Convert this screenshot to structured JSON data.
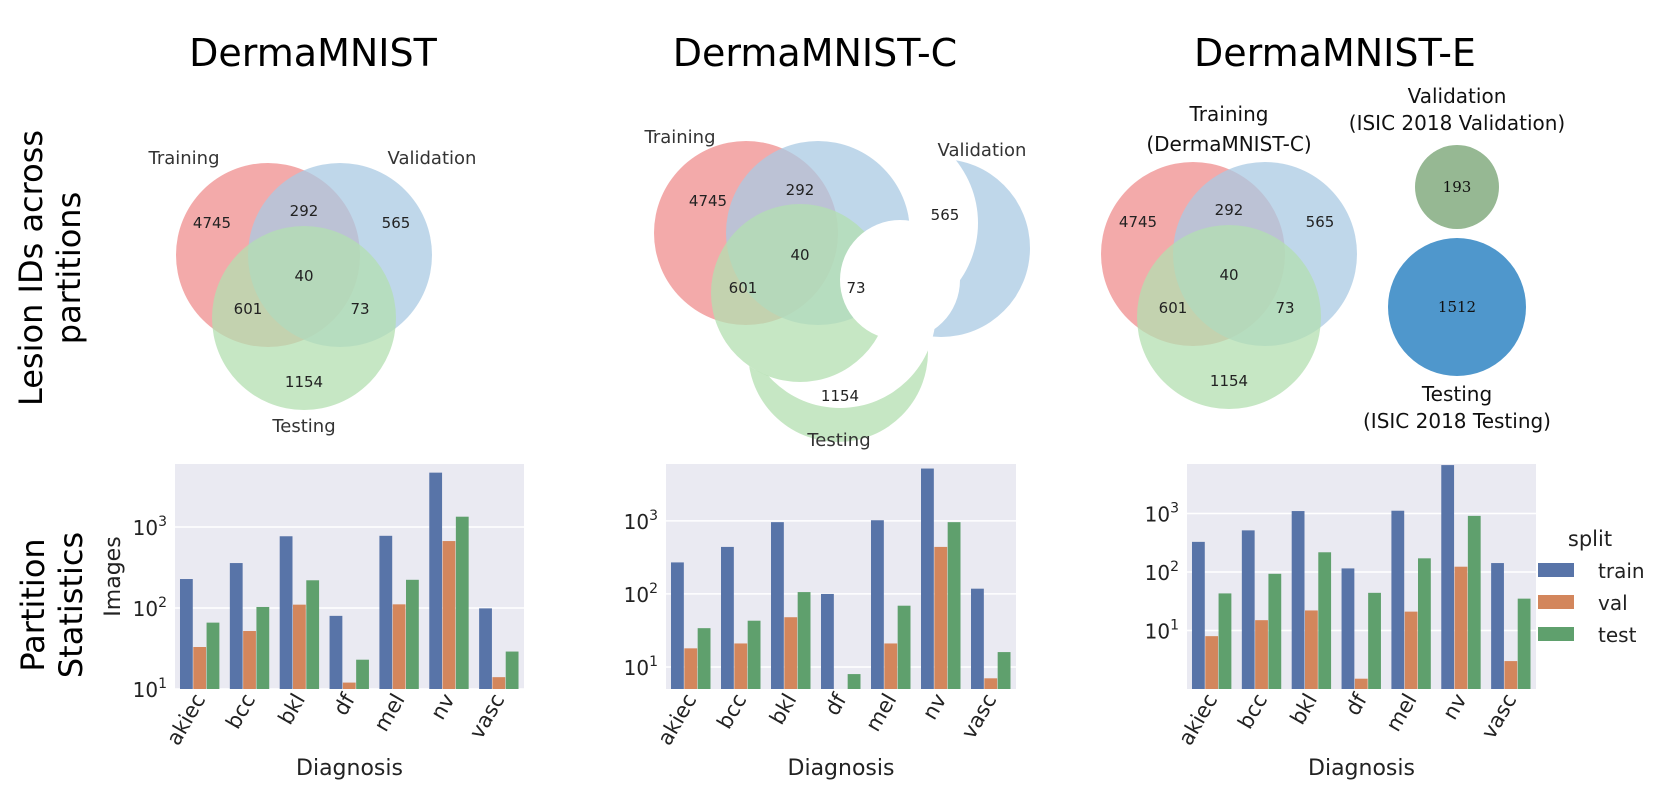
{
  "titles": [
    "DermaMNIST",
    "DermaMNIST-C",
    "DermaMNIST-E"
  ],
  "row_labels": {
    "top_line1": "Lesion IDs across",
    "top_line2": "partitions",
    "bottom_line1": "Partition",
    "bottom_line2": "Statistics"
  },
  "venn": {
    "labels": {
      "training": "Training",
      "validation": "Validation",
      "testing": "Testing"
    },
    "regions": {
      "train_only": "4745",
      "train_val": "292",
      "val_only": "565",
      "all_three": "40",
      "train_test": "601",
      "val_test": "73",
      "test_only": "1154"
    },
    "e_training_line1": "Training",
    "e_training_line2": "(DermaMNIST-C)",
    "e_validation_line1": "Validation",
    "e_validation_line2": "(ISIC 2018 Validation)",
    "e_testing_line1": "Testing",
    "e_testing_line2": "(ISIC 2018 Testing)",
    "e_val_count": "193",
    "e_test_count": "1512"
  },
  "colors": {
    "train": "#5874a8",
    "val": "#d3865c",
    "test": "#5fa06d",
    "plot_bg": "#eaeaf2",
    "venn_train": "#f2a1a1",
    "venn_val": "#a9c9e3",
    "venn_test": "#b3dfb0",
    "venn_tv": "#e6bad4",
    "venn_tt": "#f0d0b0",
    "venn_vt": "#bfeadd",
    "venn_all": "#d6ccc4",
    "e_val": "#96b893",
    "e_test": "#4f97cc"
  },
  "legend": {
    "title": "split",
    "items": [
      "train",
      "val",
      "test"
    ]
  },
  "chart_data": [
    {
      "type": "bar",
      "title": "DermaMNIST",
      "xlabel": "Diagnosis",
      "ylabel": "Images",
      "yscale": "log",
      "ylim": [
        10,
        6000
      ],
      "yticks": [
        10,
        100,
        1000
      ],
      "yticklabels": [
        [
          "10",
          "1"
        ],
        [
          "10",
          "2"
        ],
        [
          "10",
          "3"
        ]
      ],
      "categories": [
        "akiec",
        "bcc",
        "bkl",
        "df",
        "mel",
        "nv",
        "vasc"
      ],
      "series": [
        {
          "name": "train",
          "values": [
            228,
            359,
            769,
            80,
            779,
            4693,
            99
          ]
        },
        {
          "name": "val",
          "values": [
            33,
            52,
            110,
            12,
            111,
            671,
            14
          ]
        },
        {
          "name": "test",
          "values": [
            66,
            103,
            220,
            23,
            223,
            1341,
            29
          ]
        }
      ]
    },
    {
      "type": "bar",
      "title": "DermaMNIST-C",
      "xlabel": "Diagnosis",
      "ylabel": "",
      "yscale": "log",
      "ylim": [
        5,
        6000
      ],
      "yticks": [
        10,
        100,
        1000
      ],
      "yticklabels": [
        [
          "10",
          "1"
        ],
        [
          "10",
          "2"
        ],
        [
          "10",
          "3"
        ]
      ],
      "categories": [
        "akiec",
        "bcc",
        "bkl",
        "df",
        "mel",
        "nv",
        "vasc"
      ],
      "series": [
        {
          "name": "train",
          "values": [
            270,
            440,
            960,
            100,
            1020,
            5200,
            118
          ]
        },
        {
          "name": "val",
          "values": [
            18,
            21,
            48,
            5,
            21,
            440,
            7
          ]
        },
        {
          "name": "test",
          "values": [
            34,
            43,
            106,
            8,
            69,
            960,
            16
          ]
        }
      ]
    },
    {
      "type": "bar",
      "title": "DermaMNIST-E",
      "xlabel": "Diagnosis",
      "ylabel": "",
      "yscale": "log",
      "ylim": [
        1,
        7000
      ],
      "yticks": [
        10,
        100,
        1000
      ],
      "yticklabels": [
        [
          "10",
          "1"
        ],
        [
          "10",
          "2"
        ],
        [
          "10",
          "3"
        ]
      ],
      "categories": [
        "akiec",
        "bcc",
        "bkl",
        "df",
        "mel",
        "nv",
        "vasc"
      ],
      "series": [
        {
          "name": "train",
          "values": [
            327,
            514,
            1099,
            115,
            1113,
            6705,
            142
          ]
        },
        {
          "name": "val",
          "values": [
            8,
            15,
            22,
            1.5,
            21,
            123,
            3
          ]
        },
        {
          "name": "test",
          "values": [
            43,
            93,
            217,
            44,
            171,
            909,
            35
          ]
        }
      ]
    }
  ]
}
